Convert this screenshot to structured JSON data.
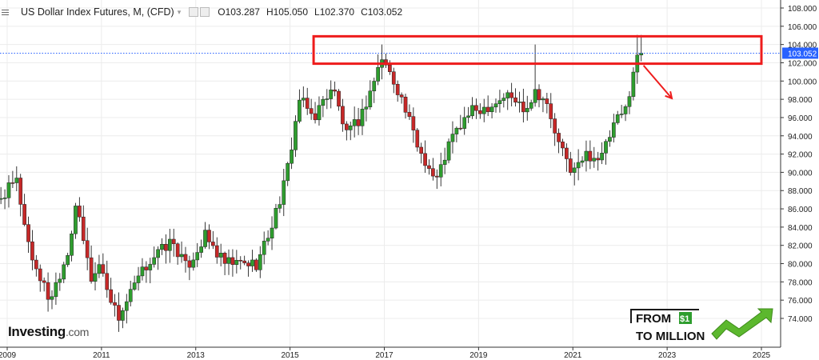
{
  "header": {
    "title": "US Dollar Index Futures, M, (CFD)",
    "open": "O103.287",
    "high": "H105.050",
    "low": "L102.370",
    "close": "C103.052"
  },
  "branding": {
    "investing_main": "Investing",
    "investing_suffix": ".com",
    "fm_line1": "FROM",
    "fm_badge": "$1",
    "fm_line2": "TO MILLION"
  },
  "colors": {
    "up": "#2e9d2e",
    "down": "#c62828",
    "box": "#ee1c1c",
    "arrow": "#ee1c1c",
    "price_tag": "#2962ff",
    "price_line": "#2962ff",
    "brand_green": "#4caf50"
  },
  "chart_data": {
    "type": "candlestick",
    "title": "US Dollar Index Futures, M, (CFD)",
    "interval": "monthly",
    "x_tick_labels": [
      "2009",
      "2011",
      "2013",
      "2015",
      "2017",
      "2019",
      "2021",
      "2023",
      "2025"
    ],
    "y_tick_labels": [
      "74.000",
      "76.000",
      "78.000",
      "80.000",
      "82.000",
      "84.000",
      "86.000",
      "88.000",
      "90.000",
      "92.000",
      "94.000",
      "96.000",
      "98.000",
      "100.000",
      "102.000",
      "104.000",
      "106.000",
      "108.000"
    ],
    "ylim": [
      72.4,
      108.8
    ],
    "last_price": "103.052",
    "last_value": 103.052,
    "resistance_zone": {
      "from": 101.9,
      "to": 104.9,
      "x_start": 2015.5,
      "x_end": 2025.0
    },
    "projection_arrow": {
      "from": [
        2022.5,
        101.7
      ],
      "to": [
        2023.1,
        98.1
      ]
    },
    "path": [
      [
        2008.5,
        85.5
      ],
      [
        2008.9,
        87.5
      ],
      [
        2009.2,
        89.0
      ],
      [
        2009.5,
        81.0
      ],
      [
        2009.9,
        76.0
      ],
      [
        2010.3,
        81.5
      ],
      [
        2010.45,
        86.5
      ],
      [
        2010.8,
        78.0
      ],
      [
        2010.95,
        80.0
      ],
      [
        2011.35,
        74.0
      ],
      [
        2011.8,
        78.5
      ],
      [
        2012.05,
        80.5
      ],
      [
        2012.5,
        82.5
      ],
      [
        2012.8,
        79.5
      ],
      [
        2013.2,
        83.0
      ],
      [
        2013.6,
        80.0
      ],
      [
        2014.3,
        80.0
      ],
      [
        2014.6,
        84.0
      ],
      [
        2014.9,
        89.0
      ],
      [
        2015.2,
        98.0
      ],
      [
        2015.5,
        96.0
      ],
      [
        2015.9,
        99.5
      ],
      [
        2016.2,
        94.0
      ],
      [
        2016.5,
        96.0
      ],
      [
        2016.95,
        102.5
      ],
      [
        2017.3,
        99.0
      ],
      [
        2017.7,
        93.0
      ],
      [
        2018.1,
        89.0
      ],
      [
        2018.4,
        93.5
      ],
      [
        2018.8,
        96.5
      ],
      [
        2019.3,
        97.5
      ],
      [
        2019.6,
        98.5
      ],
      [
        2020.0,
        97.0
      ],
      [
        2020.2,
        99.0
      ],
      [
        2020.4,
        98.0
      ],
      [
        2020.7,
        93.0
      ],
      [
        2021.0,
        90.0
      ],
      [
        2021.3,
        92.0
      ],
      [
        2021.6,
        91.5
      ],
      [
        2021.9,
        95.5
      ],
      [
        2022.1,
        96.5
      ],
      [
        2022.3,
        101.5
      ],
      [
        2022.4,
        103.05
      ]
    ],
    "spikes": [
      [
        2016.95,
        104.0
      ],
      [
        2020.2,
        104.0
      ],
      [
        2022.4,
        105.05
      ]
    ]
  }
}
